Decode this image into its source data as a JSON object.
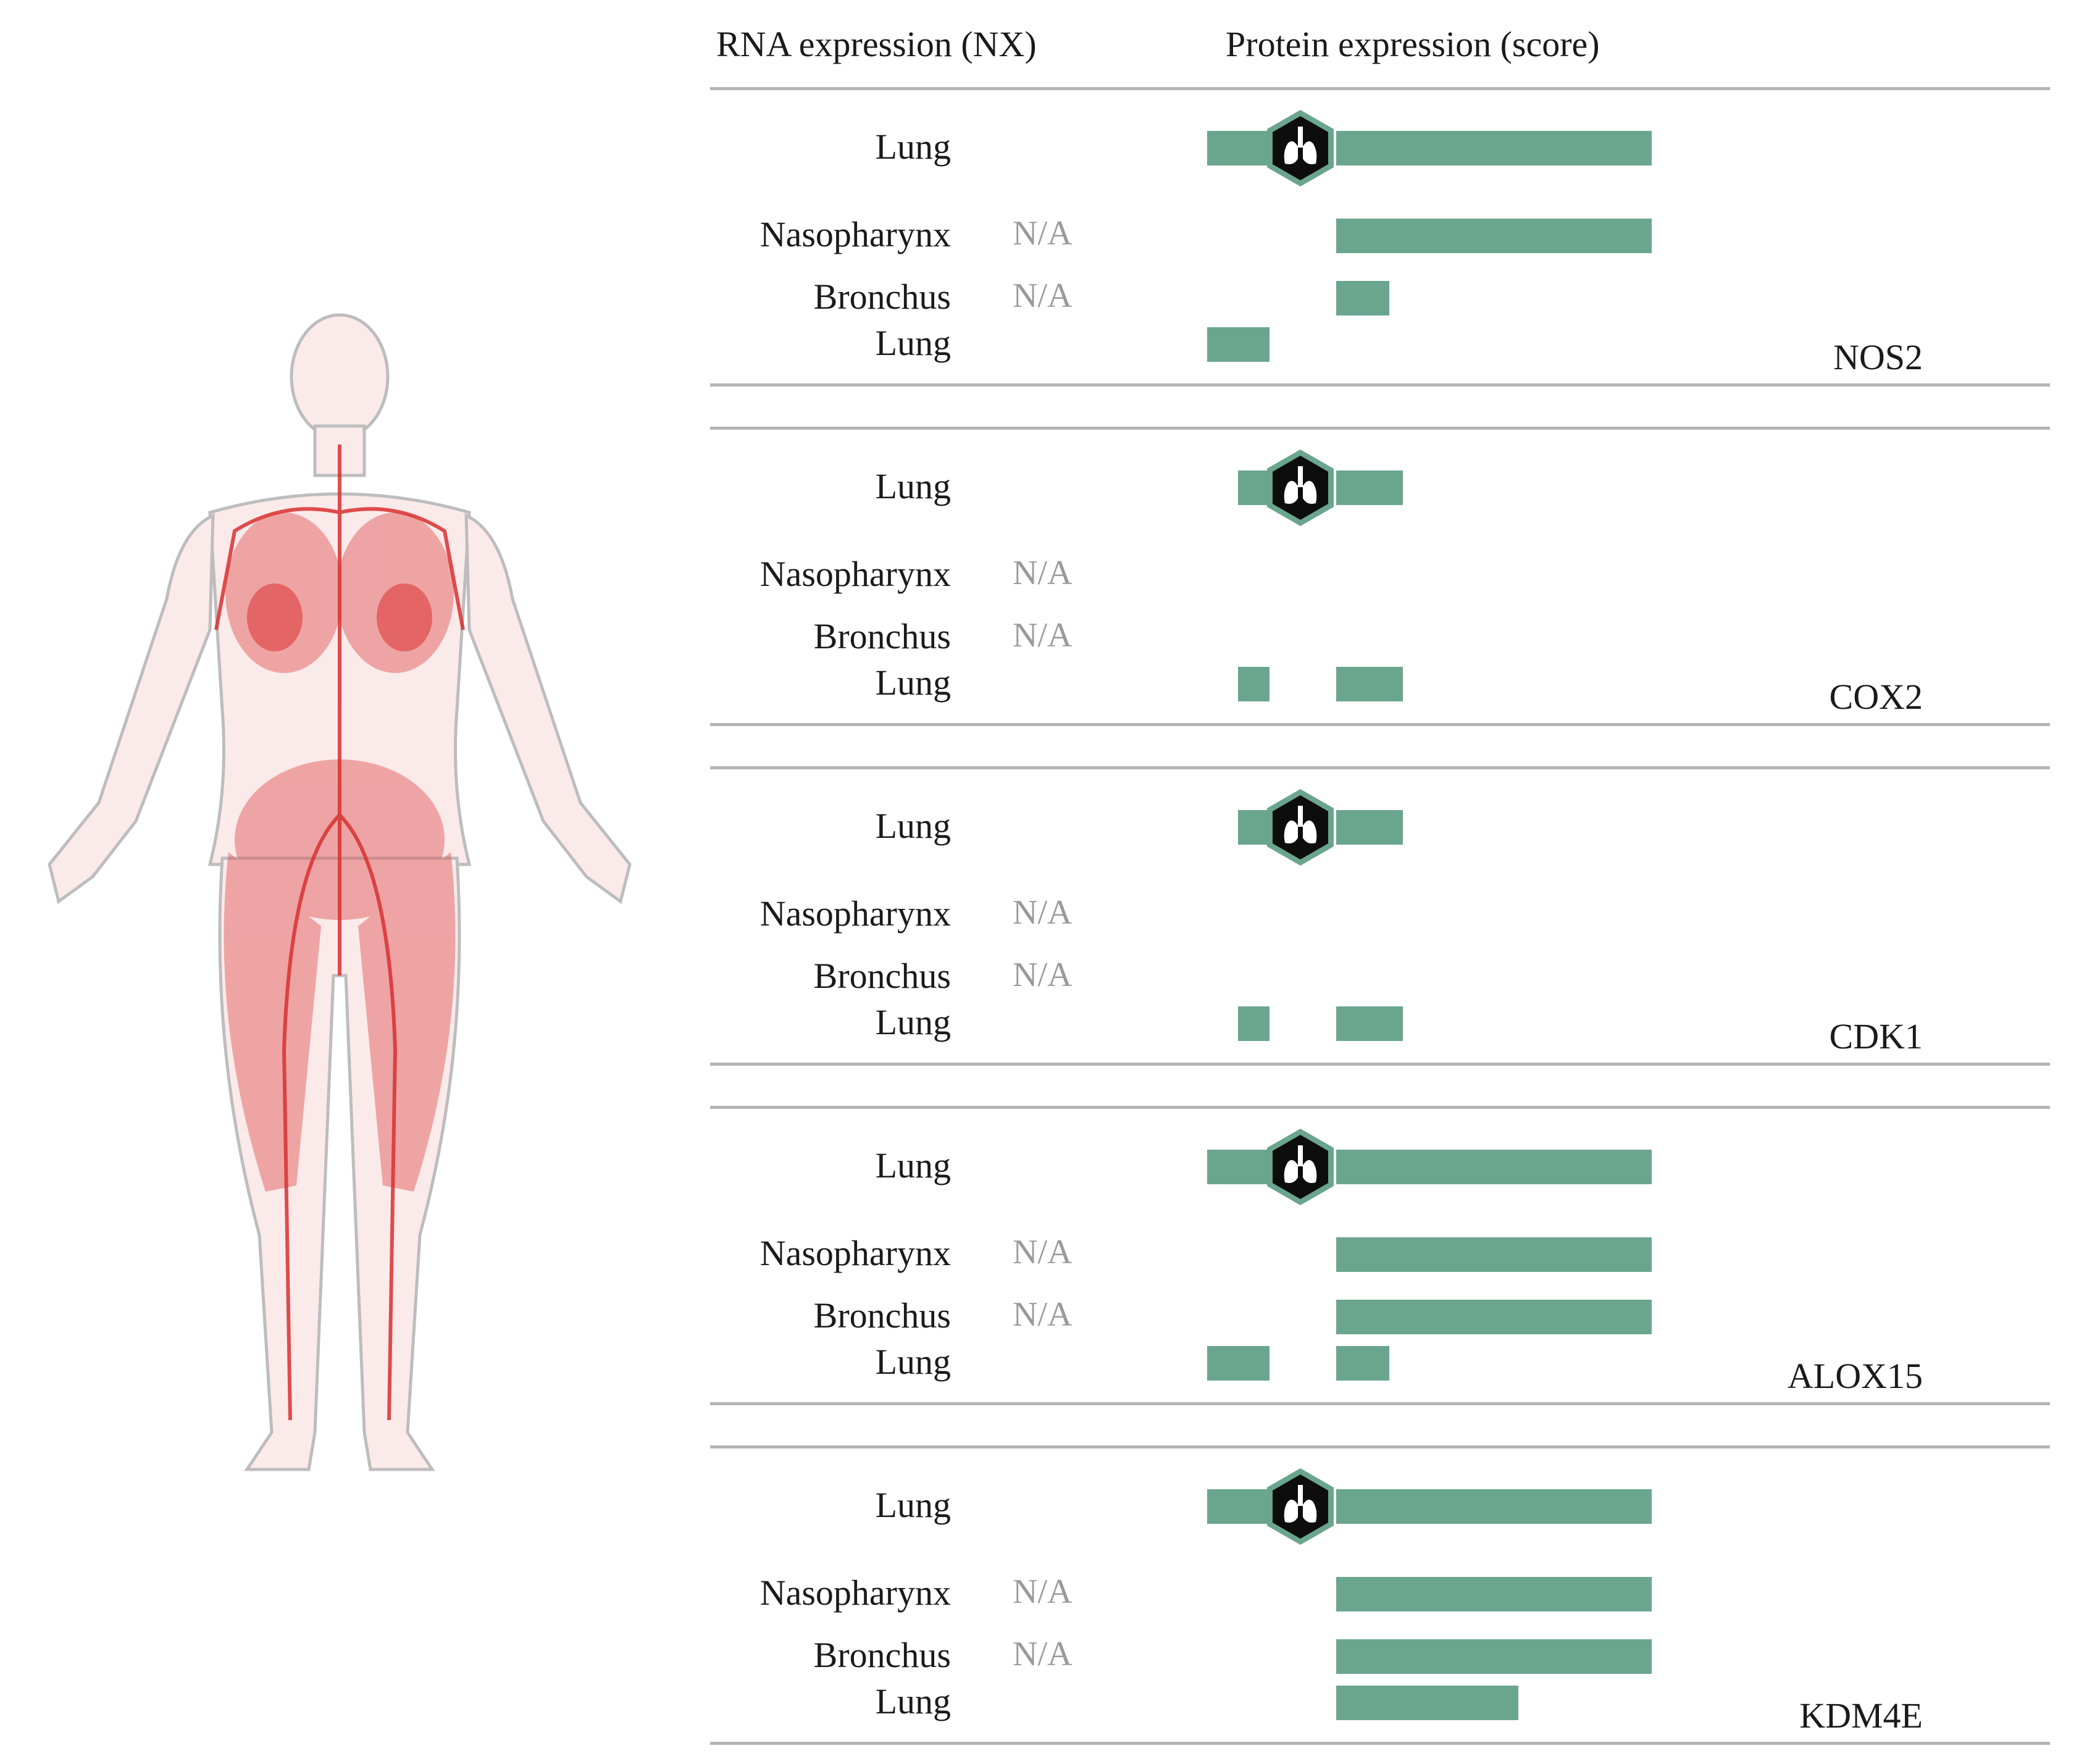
{
  "headers": {
    "rna": "RNA expression (NX)",
    "protein": "Protein expression (score)"
  },
  "colors": {
    "bar": "#6aa58d",
    "hex_fill": "#0d0d0d",
    "hex_border": "#6aa58d",
    "body_red": "#e05050"
  },
  "icons": {
    "lung": "lung-icon",
    "body": "female-anatomy-figure"
  },
  "genes": [
    {
      "name": "NOS2",
      "rows": [
        {
          "tissue": "Lung",
          "rna": "",
          "protein_segments": [
            [
              0,
              0.14
            ],
            [
              0.29,
              1.0
            ]
          ],
          "icon": true
        },
        {
          "tissue": "Nasopharynx",
          "rna": "N/A",
          "protein_segments": [
            [
              0.29,
              1.0
            ]
          ],
          "icon": false
        },
        {
          "tissue": "Bronchus",
          "rna": "N/A",
          "protein_segments": [
            [
              0.29,
              0.41
            ]
          ],
          "icon": false
        },
        {
          "tissue": "Lung",
          "rna": "",
          "protein_segments": [
            [
              0,
              0.14
            ]
          ],
          "icon": false
        }
      ]
    },
    {
      "name": "COX2",
      "rows": [
        {
          "tissue": "Lung",
          "rna": "",
          "protein_segments": [
            [
              0.07,
              0.14
            ],
            [
              0.29,
              0.44
            ]
          ],
          "icon": true
        },
        {
          "tissue": "Nasopharynx",
          "rna": "N/A",
          "protein_segments": [],
          "icon": false
        },
        {
          "tissue": "Bronchus",
          "rna": "N/A",
          "protein_segments": [],
          "icon": false
        },
        {
          "tissue": "Lung",
          "rna": "",
          "protein_segments": [
            [
              0.07,
              0.14
            ],
            [
              0.29,
              0.44
            ]
          ],
          "icon": false
        }
      ]
    },
    {
      "name": "CDK1",
      "rows": [
        {
          "tissue": "Lung",
          "rna": "",
          "protein_segments": [
            [
              0.07,
              0.14
            ],
            [
              0.29,
              0.44
            ]
          ],
          "icon": true
        },
        {
          "tissue": "Nasopharynx",
          "rna": "N/A",
          "protein_segments": [],
          "icon": false
        },
        {
          "tissue": "Bronchus",
          "rna": "N/A",
          "protein_segments": [],
          "icon": false
        },
        {
          "tissue": "Lung",
          "rna": "",
          "protein_segments": [
            [
              0.07,
              0.14
            ],
            [
              0.29,
              0.44
            ]
          ],
          "icon": false
        }
      ]
    },
    {
      "name": "ALOX15",
      "rows": [
        {
          "tissue": "Lung",
          "rna": "",
          "protein_segments": [
            [
              0,
              0.14
            ],
            [
              0.29,
              1.0
            ]
          ],
          "icon": true
        },
        {
          "tissue": "Nasopharynx",
          "rna": "N/A",
          "protein_segments": [
            [
              0.29,
              1.0
            ]
          ],
          "icon": false
        },
        {
          "tissue": "Bronchus",
          "rna": "N/A",
          "protein_segments": [
            [
              0.29,
              1.0
            ]
          ],
          "icon": false
        },
        {
          "tissue": "Lung",
          "rna": "",
          "protein_segments": [
            [
              0,
              0.14
            ],
            [
              0.29,
              0.41
            ]
          ],
          "icon": false
        }
      ]
    },
    {
      "name": "KDM4E",
      "rows": [
        {
          "tissue": "Lung",
          "rna": "",
          "protein_segments": [
            [
              0,
              0.14
            ],
            [
              0.29,
              1.0
            ]
          ],
          "icon": true
        },
        {
          "tissue": "Nasopharynx",
          "rna": "N/A",
          "protein_segments": [
            [
              0.29,
              1.0
            ]
          ],
          "icon": false
        },
        {
          "tissue": "Bronchus",
          "rna": "N/A",
          "protein_segments": [
            [
              0.29,
              1.0
            ]
          ],
          "icon": false
        },
        {
          "tissue": "Lung",
          "rna": "",
          "protein_segments": [
            [
              0.29,
              0.7
            ]
          ],
          "icon": false
        }
      ]
    }
  ]
}
